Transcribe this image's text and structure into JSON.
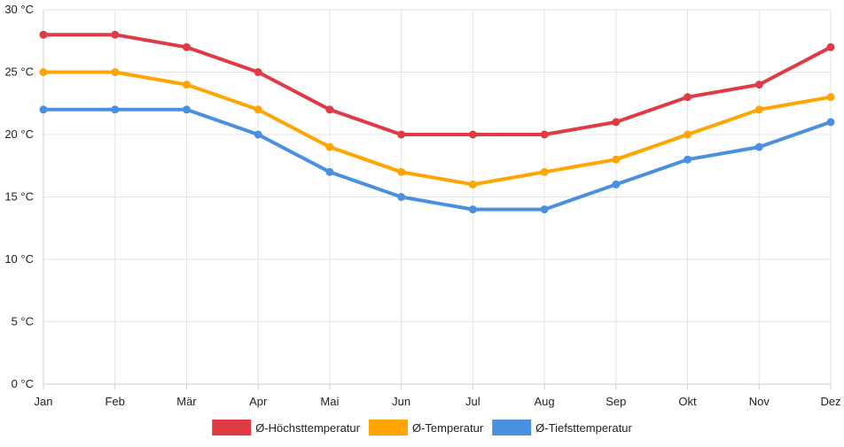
{
  "chart_data": {
    "type": "line",
    "title": "",
    "xlabel": "",
    "ylabel": "",
    "categories": [
      "Jan",
      "Feb",
      "Mär",
      "Apr",
      "Mai",
      "Jun",
      "Jul",
      "Aug",
      "Sep",
      "Okt",
      "Nov",
      "Dez"
    ],
    "ylim": [
      0,
      30
    ],
    "y_ticks": [
      0,
      5,
      10,
      15,
      20,
      25,
      30
    ],
    "y_tick_labels": [
      "0 °C",
      "5 °C",
      "10 °C",
      "15 °C",
      "20 °C",
      "25 °C",
      "30 °C"
    ],
    "grid": true,
    "legend_position": "bottom",
    "series": [
      {
        "name": "Ø-Höchsttemperatur",
        "color": "#e03a45",
        "values": [
          28,
          28,
          27,
          25,
          22,
          20,
          20,
          20,
          21,
          23,
          24,
          27
        ]
      },
      {
        "name": "Ø-Temperatur",
        "color": "#ffa400",
        "values": [
          25,
          25,
          24,
          22,
          19,
          17,
          16,
          17,
          18,
          20,
          22,
          23
        ]
      },
      {
        "name": "Ø-Tiefsttemperatur",
        "color": "#4a8fe0",
        "values": [
          22,
          22,
          22,
          20,
          17,
          15,
          14,
          14,
          16,
          18,
          19,
          21
        ]
      }
    ]
  }
}
